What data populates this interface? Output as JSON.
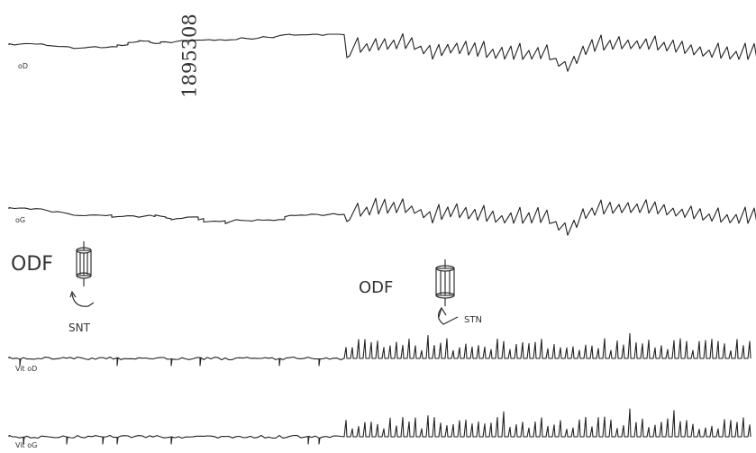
{
  "stamp": "1895308",
  "traces": [
    {
      "label": "oD"
    },
    {
      "label": "oG"
    },
    {
      "label": "Vit oD"
    },
    {
      "label": "Vit oG"
    }
  ],
  "annotations": [
    {
      "label": "ODF",
      "rotation": "SNT"
    },
    {
      "label": "ODF",
      "rotation": "STN"
    }
  ]
}
